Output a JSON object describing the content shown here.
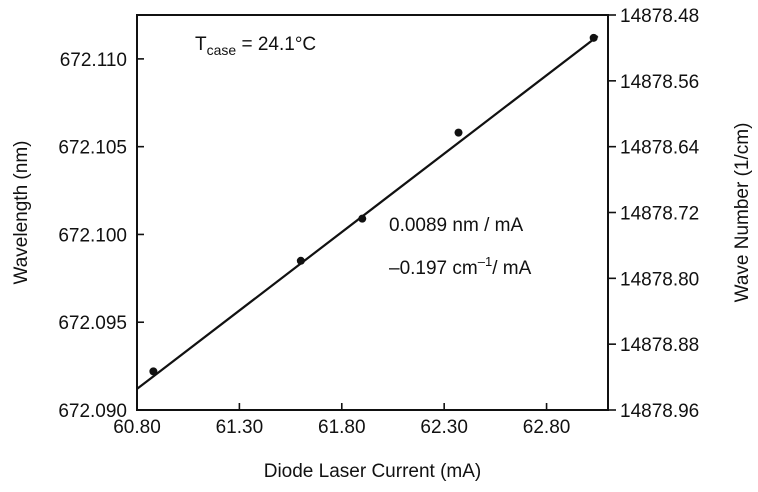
{
  "chart_data": {
    "type": "scatter",
    "xlabel": "Diode Laser Current (mA)",
    "ylabel": "Wavelength (nm)",
    "y2label": "Wave Number (1/cm)",
    "xlim": [
      60.8,
      63.1
    ],
    "ylim": [
      672.09,
      672.1125
    ],
    "y2lim": [
      14878.48,
      14878.96
    ],
    "y2_inverted": true,
    "x_ticks": [
      "60.80",
      "61.30",
      "61.80",
      "62.30",
      "62.80"
    ],
    "y_ticks": [
      "672.090",
      "672.095",
      "672.100",
      "672.105",
      "672.110"
    ],
    "y2_ticks": [
      "14878.48",
      "14878.56",
      "14878.64",
      "14878.72",
      "14878.80",
      "14878.88",
      "14878.96"
    ],
    "series": [
      {
        "x": [
          60.88,
          61.6,
          61.9,
          62.37,
          63.03
        ],
        "y": [
          672.0922,
          672.0985,
          672.1009,
          672.1058,
          672.1112
        ]
      }
    ],
    "fit_line": {
      "x": [
        60.8,
        63.05
      ],
      "y": [
        672.0912,
        672.1113
      ]
    },
    "annotations": {
      "temperature_prefix": "T",
      "temperature_subscript": "case",
      "temperature_value": " = 24.1°C",
      "slope_nm": "0.0089 nm / mA",
      "slope_cm_prefix": "–0.197 cm",
      "slope_cm_superscript": "–1",
      "slope_cm_suffix": "/ mA"
    },
    "grid": false,
    "legend": "none",
    "colors": {
      "axes": "#111111",
      "points": "#111111",
      "line": "#111111"
    }
  }
}
